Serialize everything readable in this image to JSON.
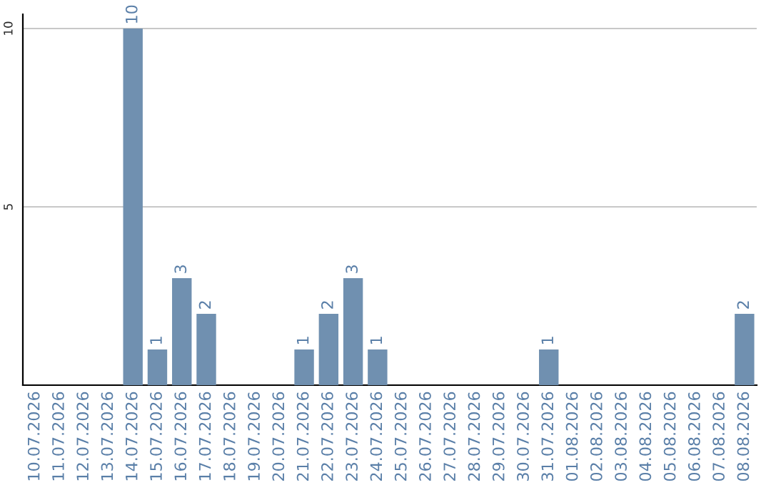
{
  "chart_data": {
    "type": "bar",
    "categories": [
      "10.07.2026",
      "11.07.2026",
      "12.07.2026",
      "13.07.2026",
      "14.07.2026",
      "15.07.2026",
      "16.07.2026",
      "17.07.2026",
      "18.07.2026",
      "19.07.2026",
      "20.07.2026",
      "21.07.2026",
      "22.07.2026",
      "23.07.2026",
      "24.07.2026",
      "25.07.2026",
      "26.07.2026",
      "27.07.2026",
      "28.07.2026",
      "29.07.2026",
      "30.07.2026",
      "31.07.2026",
      "01.08.2026",
      "02.08.2026",
      "03.08.2026",
      "04.08.2026",
      "05.08.2026",
      "06.08.2026",
      "07.08.2026",
      "08.08.2026"
    ],
    "values": [
      0,
      0,
      0,
      0,
      10,
      1,
      3,
      2,
      0,
      0,
      0,
      1,
      2,
      3,
      1,
      0,
      0,
      0,
      0,
      0,
      0,
      1,
      0,
      0,
      0,
      0,
      0,
      0,
      0,
      2
    ],
    "value_labels": [
      null,
      null,
      null,
      null,
      "10",
      "1",
      "3",
      "2",
      null,
      null,
      null,
      "1",
      "2",
      "3",
      "1",
      null,
      null,
      null,
      null,
      null,
      null,
      "1",
      null,
      null,
      null,
      null,
      null,
      null,
      null,
      "2"
    ],
    "color": "#7090b0",
    "ylim": [
      0,
      10.4
    ],
    "yticks": [
      5,
      10
    ],
    "grid": "y"
  }
}
